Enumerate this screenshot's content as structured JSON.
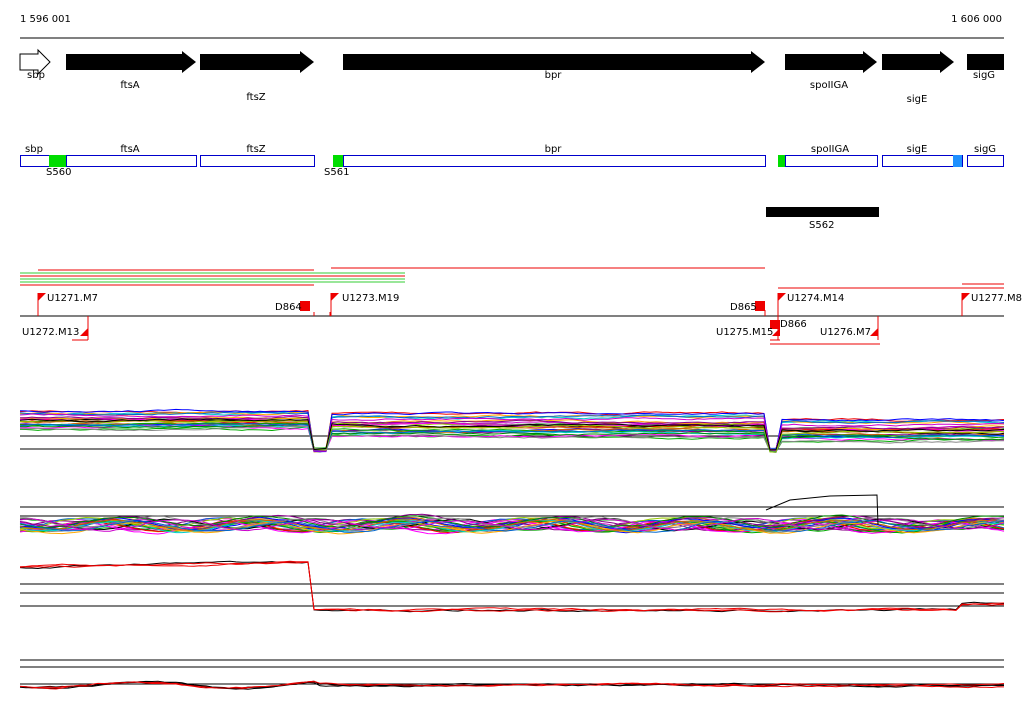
{
  "ruler": {
    "start": "1 596 001",
    "end": "1 606 000"
  },
  "genes": [
    "sbp",
    "ftsA",
    "ftsZ",
    "bpr",
    "spoIIGA",
    "sigE",
    "sigG"
  ],
  "segments": [
    "sbp",
    "ftsA",
    "ftsZ",
    "bpr",
    "spoIIGA",
    "sigE",
    "sigG"
  ],
  "promoters": [
    "S560",
    "S561",
    "S562"
  ],
  "transcripts": [
    "U1271.M7",
    "D864",
    "U1273.M19",
    "D865",
    "U1274.M14",
    "U1277.M8",
    "U1272.M13",
    "U1275.M15",
    "D866",
    "U1276.M7"
  ]
}
